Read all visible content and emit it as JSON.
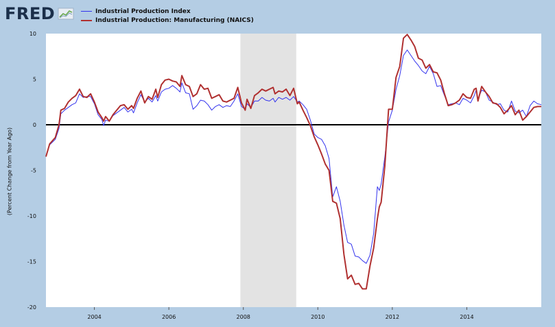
{
  "brand": {
    "name": "FRED"
  },
  "chart_data": {
    "type": "line",
    "title": "",
    "xlabel": "",
    "ylabel": "(Percent Change from Year Ago)",
    "xlim": [
      2002.7,
      2016.0
    ],
    "ylim": [
      -20,
      10
    ],
    "yticks": [
      -20,
      -15,
      -10,
      -5,
      0,
      5,
      10
    ],
    "xticks": [
      2004,
      2006,
      2008,
      2010,
      2012,
      2014
    ],
    "legend_position": "top-left",
    "grid": false,
    "zero_line": true,
    "recession_shading": [
      [
        2007.92,
        2009.42
      ]
    ],
    "colors": {
      "recession": "#e3e3e3",
      "zero_line": "#000000",
      "background": "#b4cde4",
      "plot_bg": "#ffffff"
    },
    "series": [
      {
        "name": "Industrial Production Index",
        "color": "#3333ee",
        "points": [
          [
            2002.7,
            -3.4
          ],
          [
            2002.8,
            -2.2
          ],
          [
            2002.95,
            -1.6
          ],
          [
            2003.05,
            -0.4
          ],
          [
            2003.1,
            1.2
          ],
          [
            2003.2,
            1.6
          ],
          [
            2003.3,
            1.9
          ],
          [
            2003.4,
            2.2
          ],
          [
            2003.5,
            2.4
          ],
          [
            2003.6,
            3.4
          ],
          [
            2003.7,
            3.0
          ],
          [
            2003.8,
            3.1
          ],
          [
            2003.9,
            3.1
          ],
          [
            2004.0,
            2.3
          ],
          [
            2004.1,
            1.1
          ],
          [
            2004.2,
            0.6
          ],
          [
            2004.25,
            -0.1
          ],
          [
            2004.3,
            0.5
          ],
          [
            2004.4,
            0.4
          ],
          [
            2004.5,
            1.0
          ],
          [
            2004.6,
            1.3
          ],
          [
            2004.7,
            1.6
          ],
          [
            2004.8,
            1.9
          ],
          [
            2004.9,
            1.4
          ],
          [
            2005.0,
            1.7
          ],
          [
            2005.05,
            1.3
          ],
          [
            2005.15,
            2.4
          ],
          [
            2005.25,
            3.3
          ],
          [
            2005.35,
            2.5
          ],
          [
            2005.45,
            2.9
          ],
          [
            2005.55,
            2.5
          ],
          [
            2005.65,
            3.2
          ],
          [
            2005.7,
            2.6
          ],
          [
            2005.8,
            3.6
          ],
          [
            2005.9,
            3.9
          ],
          [
            2006.0,
            4.0
          ],
          [
            2006.1,
            4.3
          ],
          [
            2006.2,
            4.0
          ],
          [
            2006.3,
            3.6
          ],
          [
            2006.35,
            4.6
          ],
          [
            2006.45,
            3.5
          ],
          [
            2006.55,
            3.4
          ],
          [
            2006.65,
            1.7
          ],
          [
            2006.75,
            2.1
          ],
          [
            2006.85,
            2.7
          ],
          [
            2006.95,
            2.6
          ],
          [
            2007.05,
            2.2
          ],
          [
            2007.15,
            1.6
          ],
          [
            2007.25,
            2.0
          ],
          [
            2007.35,
            2.2
          ],
          [
            2007.45,
            1.9
          ],
          [
            2007.55,
            2.1
          ],
          [
            2007.65,
            2.0
          ],
          [
            2007.75,
            2.6
          ],
          [
            2007.85,
            3.4
          ],
          [
            2007.95,
            2.0
          ],
          [
            2008.05,
            1.7
          ],
          [
            2008.1,
            2.3
          ],
          [
            2008.2,
            1.9
          ],
          [
            2008.3,
            2.6
          ],
          [
            2008.4,
            2.6
          ],
          [
            2008.5,
            3.0
          ],
          [
            2008.6,
            2.7
          ],
          [
            2008.7,
            2.6
          ],
          [
            2008.8,
            2.9
          ],
          [
            2008.85,
            2.5
          ],
          [
            2008.95,
            3.0
          ],
          [
            2009.05,
            2.8
          ],
          [
            2009.15,
            3.0
          ],
          [
            2009.25,
            2.7
          ],
          [
            2009.35,
            3.1
          ],
          [
            2009.45,
            2.5
          ],
          [
            2009.5,
            2.6
          ],
          [
            2009.6,
            2.2
          ],
          [
            2009.7,
            1.7
          ],
          [
            2009.8,
            0.5
          ],
          [
            2009.9,
            -1.0
          ],
          [
            2010.0,
            -1.4
          ],
          [
            2010.1,
            -1.6
          ],
          [
            2010.2,
            -2.3
          ],
          [
            2010.3,
            -3.7
          ],
          [
            2010.4,
            -7.9
          ],
          [
            2010.5,
            -6.8
          ],
          [
            2010.6,
            -8.4
          ],
          [
            2010.7,
            -11.0
          ],
          [
            2010.8,
            -12.9
          ],
          [
            2010.9,
            -13.1
          ],
          [
            2011.0,
            -14.4
          ],
          [
            2011.1,
            -14.5
          ],
          [
            2011.2,
            -14.9
          ],
          [
            2011.3,
            -15.2
          ],
          [
            2011.4,
            -14.3
          ],
          [
            2011.5,
            -11.9
          ],
          [
            2011.6,
            -6.8
          ],
          [
            2011.65,
            -7.2
          ],
          [
            2011.7,
            -6.5
          ],
          [
            2011.8,
            -3.5
          ],
          [
            2011.9,
            0.3
          ],
          [
            2012.0,
            1.6
          ],
          [
            2012.1,
            3.9
          ],
          [
            2012.2,
            5.4
          ],
          [
            2012.3,
            7.6
          ],
          [
            2012.4,
            8.2
          ],
          [
            2012.5,
            7.6
          ],
          [
            2012.6,
            7.0
          ],
          [
            2012.7,
            6.5
          ],
          [
            2012.8,
            5.9
          ],
          [
            2012.9,
            5.6
          ],
          [
            2013.0,
            6.4
          ],
          [
            2013.1,
            5.6
          ],
          [
            2013.2,
            4.2
          ],
          [
            2013.3,
            4.3
          ],
          [
            2013.4,
            3.2
          ],
          [
            2013.5,
            2.2
          ],
          [
            2013.6,
            2.3
          ],
          [
            2013.7,
            2.4
          ],
          [
            2013.8,
            2.2
          ],
          [
            2013.9,
            2.9
          ],
          [
            2014.0,
            2.7
          ],
          [
            2014.1,
            2.4
          ],
          [
            2014.2,
            3.2
          ],
          [
            2014.25,
            3.8
          ],
          [
            2014.3,
            2.8
          ],
          [
            2014.4,
            3.8
          ],
          [
            2014.5,
            3.6
          ],
          [
            2014.6,
            2.7
          ],
          [
            2014.7,
            2.5
          ],
          [
            2014.8,
            2.2
          ],
          [
            2014.9,
            2.3
          ],
          [
            2015.0,
            1.6
          ],
          [
            2015.1,
            1.4
          ],
          [
            2015.2,
            2.6
          ],
          [
            2015.3,
            1.5
          ],
          [
            2015.4,
            1.3
          ],
          [
            2015.5,
            1.6
          ],
          [
            2015.6,
            0.9
          ],
          [
            2015.7,
            2.1
          ],
          [
            2015.8,
            2.6
          ],
          [
            2015.9,
            2.3
          ],
          [
            2016.0,
            2.2
          ]
        ]
      },
      {
        "name": "Industrial Production: Manufacturing (NAICS)",
        "color": "#b03030",
        "points": [
          [
            2002.7,
            -3.5
          ],
          [
            2002.8,
            -2.1
          ],
          [
            2002.95,
            -1.4
          ],
          [
            2003.05,
            0.0
          ],
          [
            2003.1,
            1.6
          ],
          [
            2003.2,
            1.8
          ],
          [
            2003.3,
            2.5
          ],
          [
            2003.4,
            2.9
          ],
          [
            2003.5,
            3.2
          ],
          [
            2003.6,
            3.9
          ],
          [
            2003.7,
            3.1
          ],
          [
            2003.8,
            3.0
          ],
          [
            2003.9,
            3.4
          ],
          [
            2004.0,
            2.5
          ],
          [
            2004.1,
            1.4
          ],
          [
            2004.2,
            0.8
          ],
          [
            2004.25,
            0.4
          ],
          [
            2004.3,
            0.9
          ],
          [
            2004.4,
            0.4
          ],
          [
            2004.5,
            1.1
          ],
          [
            2004.6,
            1.6
          ],
          [
            2004.7,
            2.1
          ],
          [
            2004.8,
            2.2
          ],
          [
            2004.9,
            1.7
          ],
          [
            2005.0,
            2.1
          ],
          [
            2005.05,
            1.8
          ],
          [
            2005.15,
            2.9
          ],
          [
            2005.25,
            3.7
          ],
          [
            2005.35,
            2.4
          ],
          [
            2005.45,
            3.1
          ],
          [
            2005.55,
            2.8
          ],
          [
            2005.65,
            3.9
          ],
          [
            2005.7,
            3.0
          ],
          [
            2005.8,
            4.4
          ],
          [
            2005.9,
            4.9
          ],
          [
            2006.0,
            5.0
          ],
          [
            2006.1,
            4.8
          ],
          [
            2006.2,
            4.7
          ],
          [
            2006.3,
            4.2
          ],
          [
            2006.35,
            5.4
          ],
          [
            2006.45,
            4.4
          ],
          [
            2006.55,
            4.2
          ],
          [
            2006.65,
            3.1
          ],
          [
            2006.75,
            3.4
          ],
          [
            2006.85,
            4.4
          ],
          [
            2006.95,
            3.9
          ],
          [
            2007.05,
            4.0
          ],
          [
            2007.15,
            2.9
          ],
          [
            2007.25,
            3.1
          ],
          [
            2007.35,
            3.3
          ],
          [
            2007.45,
            2.6
          ],
          [
            2007.55,
            2.5
          ],
          [
            2007.65,
            2.7
          ],
          [
            2007.75,
            2.9
          ],
          [
            2007.85,
            4.1
          ],
          [
            2007.95,
            2.4
          ],
          [
            2008.05,
            1.6
          ],
          [
            2008.1,
            2.8
          ],
          [
            2008.2,
            1.8
          ],
          [
            2008.3,
            3.2
          ],
          [
            2008.4,
            3.5
          ],
          [
            2008.5,
            3.9
          ],
          [
            2008.6,
            3.7
          ],
          [
            2008.7,
            3.9
          ],
          [
            2008.8,
            4.1
          ],
          [
            2008.85,
            3.4
          ],
          [
            2008.95,
            3.7
          ],
          [
            2009.05,
            3.6
          ],
          [
            2009.15,
            3.9
          ],
          [
            2009.25,
            3.2
          ],
          [
            2009.35,
            4.0
          ],
          [
            2009.45,
            2.3
          ],
          [
            2009.5,
            2.5
          ],
          [
            2009.6,
            1.6
          ],
          [
            2009.7,
            0.8
          ],
          [
            2009.8,
            -0.1
          ],
          [
            2009.9,
            -1.3
          ],
          [
            2010.0,
            -2.2
          ],
          [
            2010.1,
            -3.2
          ],
          [
            2010.2,
            -4.3
          ],
          [
            2010.3,
            -5.0
          ],
          [
            2010.4,
            -8.4
          ],
          [
            2010.5,
            -8.6
          ],
          [
            2010.6,
            -10.3
          ],
          [
            2010.7,
            -14.2
          ],
          [
            2010.8,
            -16.9
          ],
          [
            2010.9,
            -16.5
          ],
          [
            2011.0,
            -17.5
          ],
          [
            2011.1,
            -17.4
          ],
          [
            2011.2,
            -18.0
          ],
          [
            2011.3,
            -18.0
          ],
          [
            2011.4,
            -15.5
          ],
          [
            2011.5,
            -13.5
          ],
          [
            2011.6,
            -10.3
          ],
          [
            2011.65,
            -9.0
          ],
          [
            2011.7,
            -8.5
          ],
          [
            2011.8,
            -4.5
          ],
          [
            2011.9,
            1.7
          ],
          [
            2012.0,
            1.7
          ],
          [
            2012.1,
            5.2
          ],
          [
            2012.2,
            6.4
          ],
          [
            2012.3,
            9.5
          ],
          [
            2012.4,
            9.9
          ],
          [
            2012.5,
            9.3
          ],
          [
            2012.6,
            8.6
          ],
          [
            2012.7,
            7.3
          ],
          [
            2012.8,
            7.1
          ],
          [
            2012.9,
            6.2
          ],
          [
            2013.0,
            6.6
          ],
          [
            2013.1,
            5.8
          ],
          [
            2013.2,
            5.7
          ],
          [
            2013.3,
            4.9
          ],
          [
            2013.4,
            3.4
          ],
          [
            2013.5,
            2.1
          ],
          [
            2013.6,
            2.2
          ],
          [
            2013.7,
            2.4
          ],
          [
            2013.8,
            2.7
          ],
          [
            2013.9,
            3.4
          ],
          [
            2014.0,
            3.0
          ],
          [
            2014.1,
            2.9
          ],
          [
            2014.2,
            3.9
          ],
          [
            2014.25,
            4.0
          ],
          [
            2014.3,
            2.6
          ],
          [
            2014.4,
            4.2
          ],
          [
            2014.5,
            3.6
          ],
          [
            2014.6,
            3.1
          ],
          [
            2014.7,
            2.4
          ],
          [
            2014.8,
            2.3
          ],
          [
            2014.9,
            1.9
          ],
          [
            2015.0,
            1.2
          ],
          [
            2015.1,
            1.6
          ],
          [
            2015.2,
            2.1
          ],
          [
            2015.3,
            1.1
          ],
          [
            2015.4,
            1.6
          ],
          [
            2015.5,
            0.5
          ],
          [
            2015.6,
            0.9
          ],
          [
            2015.7,
            1.4
          ],
          [
            2015.8,
            1.9
          ],
          [
            2015.9,
            2.0
          ],
          [
            2016.0,
            2.0
          ]
        ]
      }
    ]
  }
}
